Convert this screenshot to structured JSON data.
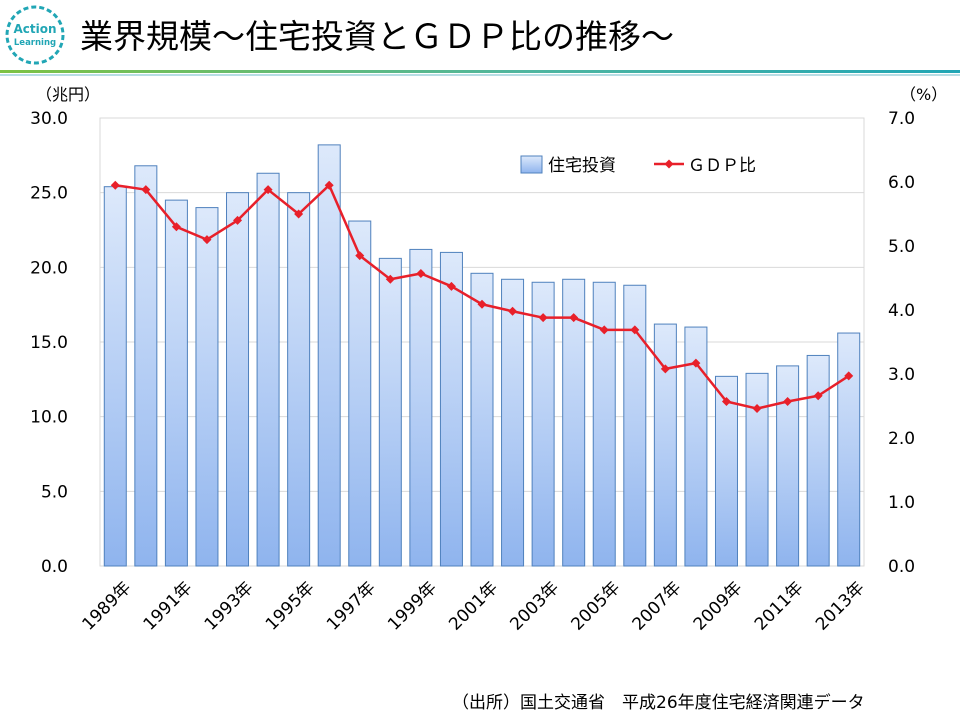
{
  "header": {
    "title": "業界規模～住宅投資とＧＤＰ比の推移～",
    "logo_text_1": "Action",
    "logo_text_2": "Learning"
  },
  "colors": {
    "line": "#e8202a",
    "bar_top": "#dde9fb",
    "bar_bottom": "#8fb4ee",
    "bar_border": "#4f81bd",
    "grid": "#d9d9d9",
    "accent_green": "#7dc243",
    "accent_teal": "#21a6b5"
  },
  "chart_data": {
    "type": "bar+line",
    "categories": [
      "1989年",
      "1990年",
      "1991年",
      "1992年",
      "1993年",
      "1994年",
      "1995年",
      "1996年",
      "1997年",
      "1998年",
      "1999年",
      "2000年",
      "2001年",
      "2002年",
      "2003年",
      "2004年",
      "2005年",
      "2006年",
      "2007年",
      "2008年",
      "2009年",
      "2010年",
      "2011年",
      "2012年",
      "2013年"
    ],
    "x_tick_labels": [
      "1989年",
      "1991年",
      "1993年",
      "1995年",
      "1997年",
      "1999年",
      "2001年",
      "2003年",
      "2005年",
      "2007年",
      "2009年",
      "2011年",
      "2013年"
    ],
    "series": [
      {
        "name": "住宅投資",
        "type": "bar",
        "axis": "left",
        "values": [
          25.4,
          26.8,
          24.5,
          24.0,
          25.0,
          26.3,
          25.0,
          28.2,
          23.1,
          20.6,
          21.2,
          21.0,
          19.6,
          19.2,
          19.0,
          19.2,
          19.0,
          18.8,
          16.2,
          16.0,
          12.7,
          12.9,
          13.4,
          14.1,
          15.6
        ]
      },
      {
        "name": "ＧＤＰ比",
        "type": "line",
        "axis": "right",
        "values": [
          5.95,
          5.88,
          5.3,
          5.1,
          5.4,
          5.88,
          5.5,
          5.95,
          4.85,
          4.48,
          4.57,
          4.37,
          4.09,
          3.98,
          3.88,
          3.88,
          3.69,
          3.69,
          3.08,
          3.17,
          2.57,
          2.46,
          2.57,
          2.66,
          2.97
        ]
      }
    ],
    "y_left": {
      "label": "（兆円）",
      "ylim": [
        0,
        30
      ],
      "ticks": [
        "0.0",
        "5.0",
        "10.0",
        "15.0",
        "20.0",
        "25.0",
        "30.0"
      ]
    },
    "y_right": {
      "label": "（%）",
      "ylim": [
        0,
        7
      ],
      "ticks": [
        "0.0",
        "1.0",
        "2.0",
        "3.0",
        "4.0",
        "5.0",
        "6.0",
        "7.0"
      ]
    },
    "legend": {
      "items": [
        "住宅投資",
        "ＧＤＰ比"
      ],
      "position": "top-right"
    },
    "grid": true
  },
  "footer": {
    "source": "（出所）国土交通省　平成26年度住宅経済関連データ"
  }
}
